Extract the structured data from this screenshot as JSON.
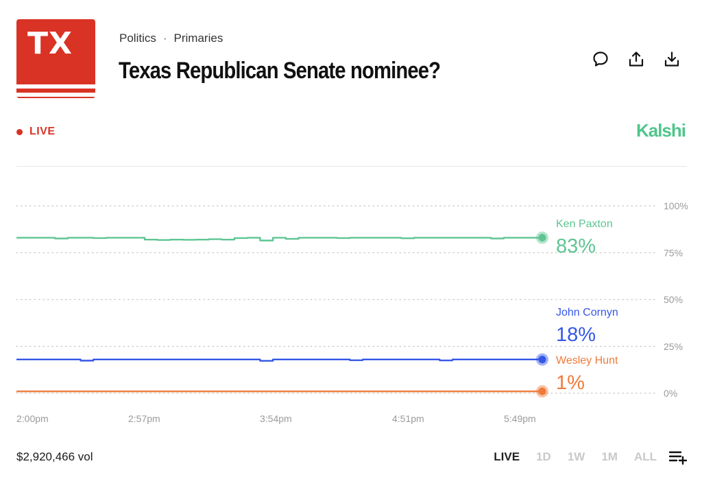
{
  "header": {
    "logo_text": "TX",
    "breadcrumb": [
      "Politics",
      "Primaries"
    ],
    "breadcrumb_separator": "·",
    "title": "Texas Republican Senate nominee?",
    "actions": [
      "comment-icon",
      "share-icon",
      "download-icon"
    ]
  },
  "status": {
    "live_label": "LIVE",
    "brand": "Kalshi"
  },
  "colors": {
    "logo_red": "#d93325",
    "live_red": "#d93325",
    "brand_green": "#4fc58b",
    "paxton": "#5ec592",
    "cornyn": "#3557e6",
    "hunt": "#ef7a3a"
  },
  "footer": {
    "volume": "$2,920,466 vol",
    "ranges": [
      "LIVE",
      "1D",
      "1W",
      "1M",
      "ALL"
    ],
    "active_range": "LIVE"
  },
  "chart_data": {
    "type": "line",
    "y_ticks": [
      "100%",
      "75%",
      "50%",
      "25%",
      "0%"
    ],
    "x_ticks": [
      "2:00pm",
      "2:57pm",
      "3:54pm",
      "4:51pm",
      "5:49pm"
    ],
    "ylim": [
      0,
      100
    ],
    "grid": true,
    "series": [
      {
        "name": "Ken Paxton",
        "label": "83%",
        "color": "#5ec592",
        "values": [
          83,
          83,
          83,
          82.6,
          83,
          83,
          82.8,
          83,
          83,
          83,
          82,
          81.8,
          82,
          81.9,
          82,
          82.2,
          82,
          82.8,
          83,
          81.5,
          83,
          82.4,
          83,
          83,
          83,
          82.8,
          83,
          83,
          83,
          83,
          82.7,
          83,
          83,
          83,
          83,
          83,
          83,
          82.6,
          83,
          83,
          83,
          83
        ]
      },
      {
        "name": "John Cornyn",
        "label": "18%",
        "color": "#3557e6",
        "values": [
          18,
          18,
          18,
          18,
          18,
          17.4,
          18,
          18,
          18,
          18,
          18,
          18,
          18,
          18,
          18,
          18,
          18,
          18,
          18,
          17.3,
          18,
          18,
          18,
          18,
          18,
          18,
          17.6,
          18,
          18,
          18,
          18,
          18,
          18,
          17.5,
          18,
          18,
          18,
          18,
          18,
          18,
          18,
          18
        ]
      },
      {
        "name": "Wesley Hunt",
        "label": "1%",
        "color": "#ef7a3a",
        "values": [
          1,
          1,
          1,
          1,
          1,
          1,
          1,
          1,
          1,
          1,
          1,
          1,
          1,
          1,
          1,
          1,
          1,
          1,
          1,
          1,
          1,
          1,
          1,
          1,
          1,
          1,
          1,
          1,
          1,
          1,
          1,
          1,
          1,
          1,
          1,
          1,
          1,
          1,
          1,
          1,
          1,
          1
        ]
      }
    ]
  }
}
